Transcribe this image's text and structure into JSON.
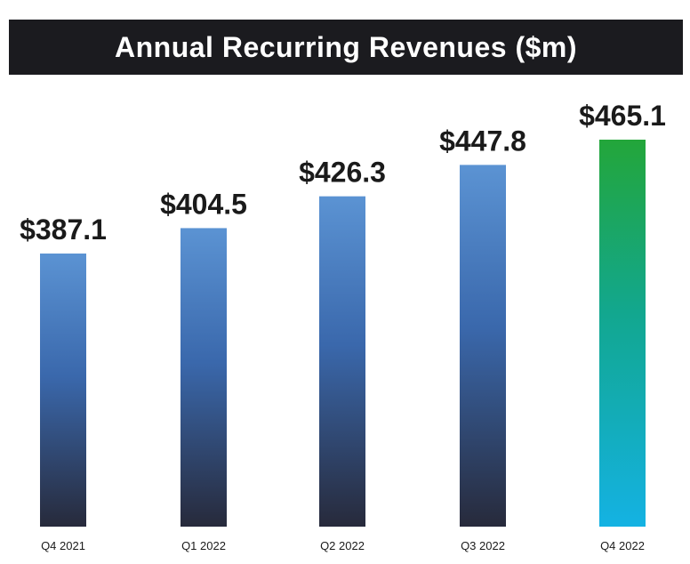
{
  "title": "Annual Recurring Revenues ($m)",
  "colors": {
    "title_background": "#1b1b1f",
    "title_text": "#ffffff",
    "bar_top": "#5b93d3",
    "bar_mid": "#3a68ac",
    "bar_bottom": "#272a3b",
    "highlight_top": "#23a63a",
    "highlight_mid": "#12a78f",
    "highlight_bottom": "#14b2e3",
    "label_text": "#1a1a1a"
  },
  "chart_data": {
    "type": "bar",
    "title": "Annual Recurring Revenues ($m)",
    "categories": [
      "Q4 2021",
      "Q1 2022",
      "Q2 2022",
      "Q3 2022",
      "Q4 2022"
    ],
    "values": [
      387.1,
      404.5,
      426.3,
      447.8,
      465.1
    ],
    "value_labels": [
      "$387.1",
      "$404.5",
      "$426.3",
      "$447.8",
      "$465.1"
    ],
    "highlight_index": 4,
    "unit": "$m",
    "xlabel": "",
    "ylabel": "",
    "ylim": [
      0,
      465.1
    ],
    "grid": false,
    "legend": false
  }
}
